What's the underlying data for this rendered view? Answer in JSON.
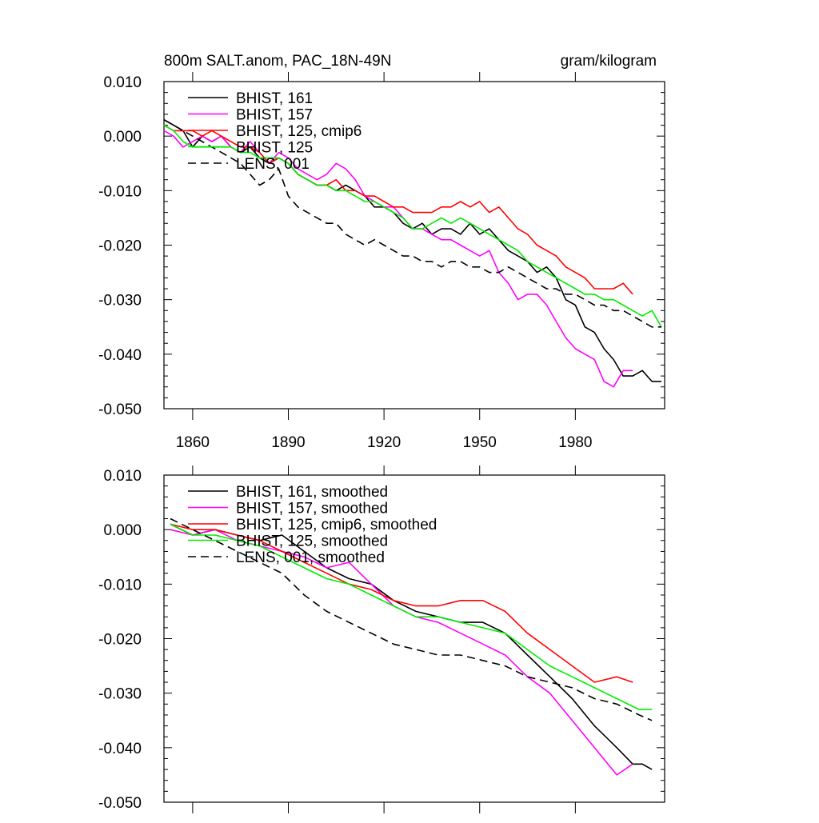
{
  "chart_data": [
    {
      "type": "line",
      "title_left": "800m SALT.anom, PAC_18N-49N",
      "title_right": "gram/kilogram",
      "xlabel": "",
      "ylabel": "",
      "xlim": [
        1851,
        2008
      ],
      "ylim": [
        -0.05,
        0.01
      ],
      "xticks": [
        1860,
        1890,
        1920,
        1950,
        1980
      ],
      "xtick_labels": [
        "1860",
        "1890",
        "1920",
        "1950",
        "1980"
      ],
      "show_xtick_labels": true,
      "yticks": [
        0.01,
        0.0,
        -0.01,
        -0.02,
        -0.03,
        -0.04,
        -0.05
      ],
      "ytick_labels": [
        "0.010",
        "0.000",
        "-0.010",
        "-0.020",
        "-0.030",
        "-0.040",
        "-0.050"
      ],
      "grid": false,
      "legend_position": "top-left",
      "series": [
        {
          "name": "BHIST, 161",
          "color": "#000000",
          "dash": "solid",
          "x": [
            1851,
            1854,
            1857,
            1860,
            1863,
            1866,
            1869,
            1872,
            1875,
            1878,
            1881,
            1884,
            1887,
            1890,
            1893,
            1896,
            1899,
            1902,
            1905,
            1908,
            1911,
            1914,
            1917,
            1920,
            1923,
            1926,
            1929,
            1932,
            1935,
            1938,
            1941,
            1944,
            1947,
            1950,
            1953,
            1956,
            1959,
            1962,
            1965,
            1968,
            1971,
            1974,
            1977,
            1980,
            1983,
            1986,
            1989,
            1992,
            1995,
            1998,
            2001,
            2004,
            2007
          ],
          "y": [
            0.003,
            0.002,
            0.001,
            -0.002,
            0.0,
            -0.001,
            0.0,
            -0.002,
            -0.003,
            -0.002,
            -0.004,
            -0.005,
            -0.004,
            -0.005,
            -0.007,
            -0.008,
            -0.009,
            -0.009,
            -0.01,
            -0.009,
            -0.01,
            -0.011,
            -0.013,
            -0.013,
            -0.014,
            -0.016,
            -0.017,
            -0.016,
            -0.018,
            -0.017,
            -0.017,
            -0.018,
            -0.016,
            -0.018,
            -0.017,
            -0.019,
            -0.021,
            -0.022,
            -0.023,
            -0.025,
            -0.024,
            -0.026,
            -0.03,
            -0.031,
            -0.035,
            -0.036,
            -0.039,
            -0.041,
            -0.044,
            -0.044,
            -0.043,
            -0.045,
            -0.045
          ]
        },
        {
          "name": "BHIST, 157",
          "color": "#ff00ff",
          "dash": "solid",
          "x": [
            1851,
            1854,
            1857,
            1860,
            1863,
            1866,
            1869,
            1872,
            1875,
            1878,
            1881,
            1884,
            1887,
            1890,
            1893,
            1896,
            1899,
            1902,
            1905,
            1908,
            1911,
            1914,
            1917,
            1920,
            1923,
            1926,
            1929,
            1932,
            1935,
            1938,
            1941,
            1944,
            1947,
            1950,
            1953,
            1956,
            1959,
            1962,
            1965,
            1968,
            1971,
            1974,
            1977,
            1980,
            1983,
            1986,
            1989,
            1992,
            1995,
            1998
          ],
          "y": [
            0.001,
            0.0,
            -0.002,
            -0.001,
            0.0,
            -0.001,
            0.0,
            -0.002,
            -0.003,
            -0.001,
            -0.003,
            -0.005,
            -0.003,
            -0.004,
            -0.006,
            -0.007,
            -0.008,
            -0.007,
            -0.005,
            -0.006,
            -0.008,
            -0.011,
            -0.012,
            -0.013,
            -0.013,
            -0.015,
            -0.017,
            -0.017,
            -0.018,
            -0.019,
            -0.019,
            -0.02,
            -0.021,
            -0.022,
            -0.021,
            -0.025,
            -0.027,
            -0.03,
            -0.029,
            -0.029,
            -0.031,
            -0.034,
            -0.037,
            -0.039,
            -0.04,
            -0.041,
            -0.045,
            -0.046,
            -0.043,
            -0.043
          ]
        },
        {
          "name": "BHIST, 125, cmip6",
          "color": "#ff0000",
          "dash": "solid",
          "x": [
            1851,
            1854,
            1857,
            1860,
            1863,
            1866,
            1869,
            1872,
            1875,
            1878,
            1881,
            1884,
            1887,
            1890,
            1893,
            1896,
            1899,
            1902,
            1905,
            1908,
            1911,
            1914,
            1917,
            1920,
            1923,
            1926,
            1929,
            1932,
            1935,
            1938,
            1941,
            1944,
            1947,
            1950,
            1953,
            1956,
            1959,
            1962,
            1965,
            1968,
            1971,
            1974,
            1977,
            1980,
            1983,
            1986,
            1989,
            1992,
            1995,
            1998
          ],
          "y": [
            0.002,
            0.001,
            0.001,
            0.001,
            0.0,
            0.001,
            0.0,
            -0.001,
            -0.002,
            -0.002,
            -0.003,
            -0.005,
            -0.004,
            -0.005,
            -0.007,
            -0.008,
            -0.009,
            -0.009,
            -0.008,
            -0.01,
            -0.01,
            -0.011,
            -0.011,
            -0.012,
            -0.013,
            -0.013,
            -0.014,
            -0.014,
            -0.014,
            -0.013,
            -0.013,
            -0.012,
            -0.013,
            -0.012,
            -0.014,
            -0.013,
            -0.015,
            -0.017,
            -0.018,
            -0.02,
            -0.021,
            -0.022,
            -0.024,
            -0.025,
            -0.026,
            -0.028,
            -0.028,
            -0.028,
            -0.027,
            -0.029
          ]
        },
        {
          "name": "BHIST, 125",
          "color": "#00ee00",
          "dash": "solid",
          "x": [
            1851,
            1854,
            1857,
            1860,
            1863,
            1866,
            1869,
            1872,
            1875,
            1878,
            1881,
            1884,
            1887,
            1890,
            1893,
            1896,
            1899,
            1902,
            1905,
            1908,
            1911,
            1914,
            1917,
            1920,
            1923,
            1926,
            1929,
            1932,
            1935,
            1938,
            1941,
            1944,
            1947,
            1950,
            1953,
            1956,
            1959,
            1962,
            1965,
            1968,
            1971,
            1974,
            1977,
            1980,
            1983,
            1986,
            1989,
            1992,
            1995,
            1998,
            2001,
            2004,
            2007
          ],
          "y": [
            0.002,
            0.001,
            -0.001,
            -0.002,
            -0.002,
            -0.002,
            -0.002,
            -0.002,
            -0.003,
            -0.003,
            -0.004,
            -0.004,
            -0.004,
            -0.005,
            -0.007,
            -0.008,
            -0.009,
            -0.009,
            -0.01,
            -0.01,
            -0.011,
            -0.012,
            -0.012,
            -0.013,
            -0.014,
            -0.015,
            -0.017,
            -0.017,
            -0.016,
            -0.015,
            -0.016,
            -0.015,
            -0.016,
            -0.017,
            -0.018,
            -0.019,
            -0.02,
            -0.021,
            -0.023,
            -0.024,
            -0.025,
            -0.026,
            -0.027,
            -0.028,
            -0.029,
            -0.029,
            -0.03,
            -0.03,
            -0.031,
            -0.032,
            -0.033,
            -0.032,
            -0.035
          ]
        },
        {
          "name": "LENS, 001",
          "color": "#000000",
          "dash": "dashed",
          "x": [
            1851,
            1854,
            1857,
            1860,
            1863,
            1866,
            1869,
            1872,
            1875,
            1878,
            1881,
            1884,
            1887,
            1890,
            1893,
            1896,
            1899,
            1902,
            1905,
            1908,
            1911,
            1914,
            1917,
            1920,
            1923,
            1926,
            1929,
            1932,
            1935,
            1938,
            1941,
            1944,
            1947,
            1950,
            1953,
            1956,
            1959,
            1962,
            1965,
            1968,
            1971,
            1974,
            1977,
            1980,
            1983,
            1986,
            1989,
            1992,
            1995,
            1998,
            2001,
            2004,
            2007
          ],
          "y": [
            0.003,
            0.002,
            0.001,
            0.0,
            -0.001,
            -0.002,
            -0.003,
            -0.004,
            -0.005,
            -0.007,
            -0.009,
            -0.008,
            -0.006,
            -0.011,
            -0.013,
            -0.014,
            -0.015,
            -0.016,
            -0.016,
            -0.018,
            -0.019,
            -0.02,
            -0.019,
            -0.02,
            -0.021,
            -0.022,
            -0.022,
            -0.023,
            -0.023,
            -0.024,
            -0.023,
            -0.023,
            -0.024,
            -0.024,
            -0.025,
            -0.025,
            -0.024,
            -0.025,
            -0.026,
            -0.027,
            -0.028,
            -0.028,
            -0.029,
            -0.029,
            -0.03,
            -0.031,
            -0.031,
            -0.032,
            -0.032,
            -0.033,
            -0.034,
            -0.035,
            -0.035
          ]
        }
      ]
    },
    {
      "type": "line",
      "title_left": "",
      "title_right": "",
      "xlabel": "",
      "ylabel": "",
      "xlim": [
        1851,
        2008
      ],
      "ylim": [
        -0.05,
        0.01
      ],
      "xticks": [
        1860,
        1890,
        1920,
        1950,
        1980
      ],
      "xtick_labels": [
        "",
        "",
        "",
        "",
        ""
      ],
      "show_xtick_labels": false,
      "yticks": [
        0.01,
        0.0,
        -0.01,
        -0.02,
        -0.03,
        -0.04,
        -0.05
      ],
      "ytick_labels": [
        "0.010",
        "0.000",
        "-0.010",
        "-0.020",
        "-0.030",
        "-0.040",
        "-0.050"
      ],
      "grid": false,
      "legend_position": "top-left",
      "series": [
        {
          "name": "BHIST, 161, smoothed",
          "color": "#000000",
          "dash": "solid",
          "x": [
            1853,
            1860,
            1867,
            1874,
            1881,
            1888,
            1895,
            1902,
            1909,
            1916,
            1923,
            1930,
            1937,
            1944,
            1951,
            1958,
            1965,
            1972,
            1979,
            1986,
            1993,
            1998,
            2001,
            2004
          ],
          "y": [
            0.001,
            -0.001,
            0.0,
            -0.001,
            -0.002,
            -0.001,
            -0.004,
            -0.007,
            -0.009,
            -0.01,
            -0.013,
            -0.015,
            -0.016,
            -0.017,
            -0.017,
            -0.019,
            -0.023,
            -0.027,
            -0.031,
            -0.036,
            -0.04,
            -0.043,
            -0.043,
            -0.044
          ]
        },
        {
          "name": "BHIST, 157, smoothed",
          "color": "#ff00ff",
          "dash": "solid",
          "x": [
            1853,
            1860,
            1867,
            1874,
            1881,
            1888,
            1895,
            1902,
            1909,
            1916,
            1923,
            1930,
            1937,
            1944,
            1951,
            1958,
            1965,
            1972,
            1979,
            1986,
            1993,
            1998
          ],
          "y": [
            0.0,
            -0.001,
            0.0,
            -0.002,
            -0.003,
            -0.004,
            -0.005,
            -0.007,
            -0.006,
            -0.01,
            -0.014,
            -0.016,
            -0.017,
            -0.019,
            -0.021,
            -0.023,
            -0.027,
            -0.03,
            -0.035,
            -0.04,
            -0.045,
            -0.043
          ]
        },
        {
          "name": "BHIST, 125, cmip6, smoothed",
          "color": "#ff0000",
          "dash": "solid",
          "x": [
            1853,
            1860,
            1867,
            1874,
            1881,
            1888,
            1895,
            1902,
            1909,
            1916,
            1923,
            1930,
            1937,
            1944,
            1951,
            1958,
            1965,
            1972,
            1979,
            1986,
            1993,
            1998
          ],
          "y": [
            0.001,
            0.0,
            0.0,
            -0.001,
            -0.002,
            -0.004,
            -0.006,
            -0.008,
            -0.01,
            -0.011,
            -0.013,
            -0.014,
            -0.014,
            -0.013,
            -0.013,
            -0.015,
            -0.019,
            -0.022,
            -0.025,
            -0.028,
            -0.027,
            -0.028
          ]
        },
        {
          "name": "BHIST, 125, smoothed",
          "color": "#00ee00",
          "dash": "solid",
          "x": [
            1853,
            1860,
            1867,
            1874,
            1881,
            1888,
            1895,
            1902,
            1909,
            1916,
            1923,
            1930,
            1937,
            1944,
            1951,
            1958,
            1965,
            1972,
            1979,
            1986,
            1993,
            2000,
            2004
          ],
          "y": [
            0.001,
            -0.001,
            -0.001,
            -0.002,
            -0.003,
            -0.005,
            -0.007,
            -0.009,
            -0.01,
            -0.012,
            -0.014,
            -0.016,
            -0.016,
            -0.017,
            -0.018,
            -0.019,
            -0.022,
            -0.025,
            -0.027,
            -0.029,
            -0.031,
            -0.033,
            -0.033
          ]
        },
        {
          "name": "LENS, 001, smoothed",
          "color": "#000000",
          "dash": "dashed",
          "x": [
            1853,
            1860,
            1867,
            1874,
            1881,
            1888,
            1895,
            1902,
            1909,
            1916,
            1923,
            1930,
            1937,
            1944,
            1951,
            1958,
            1965,
            1972,
            1979,
            1986,
            1993,
            2000,
            2004
          ],
          "y": [
            0.002,
            0.0,
            -0.002,
            -0.004,
            -0.006,
            -0.008,
            -0.012,
            -0.015,
            -0.017,
            -0.019,
            -0.021,
            -0.022,
            -0.023,
            -0.023,
            -0.024,
            -0.025,
            -0.027,
            -0.028,
            -0.029,
            -0.031,
            -0.032,
            -0.034,
            -0.035
          ]
        }
      ]
    }
  ]
}
